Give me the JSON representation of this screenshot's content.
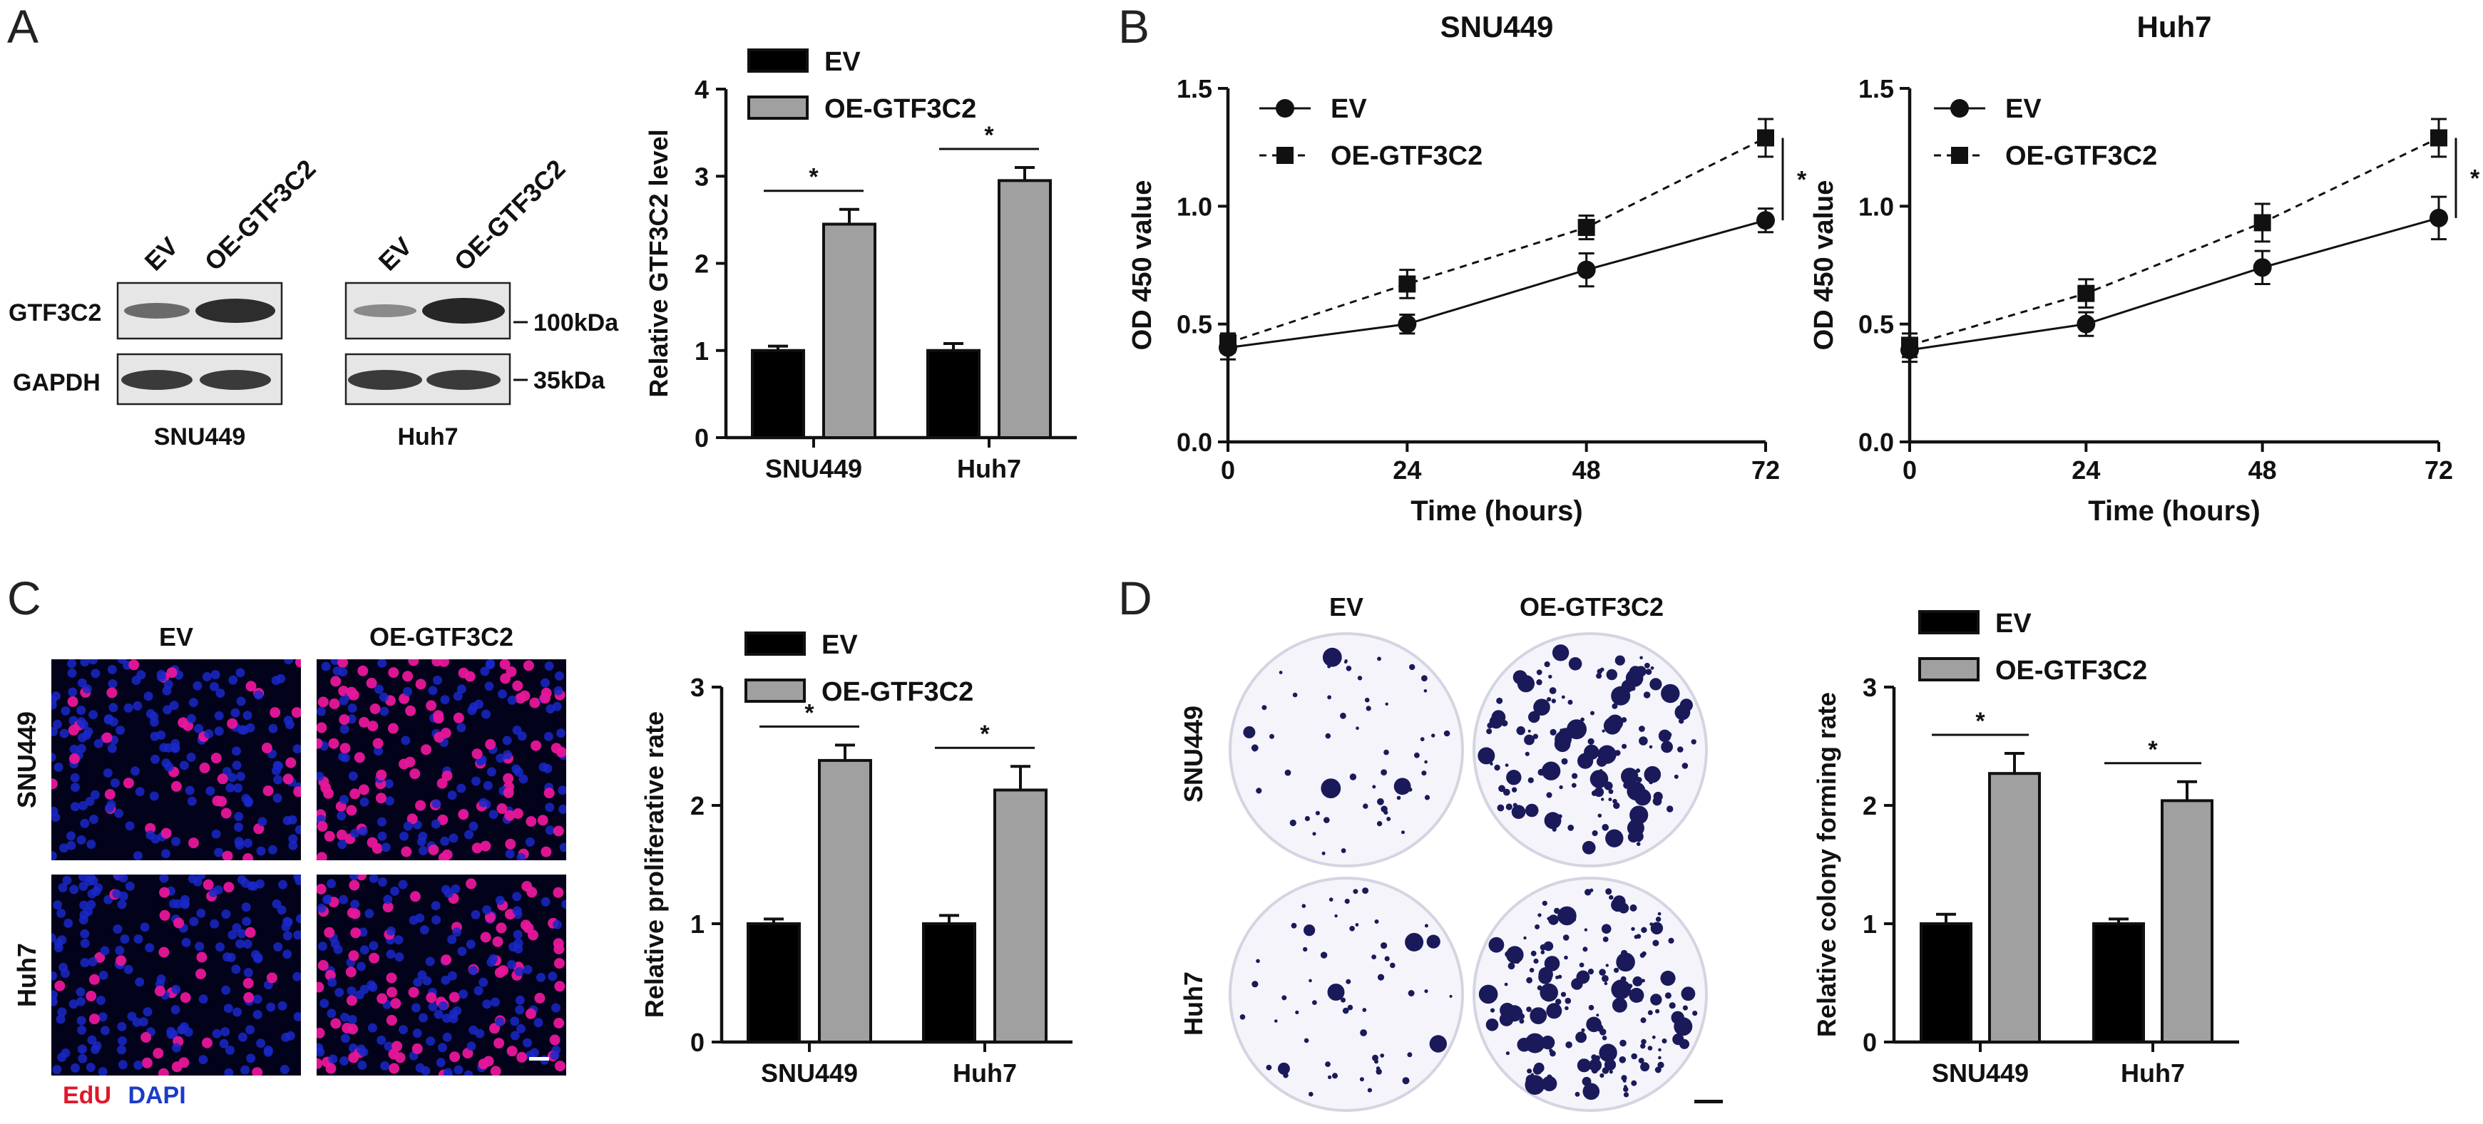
{
  "panels": {
    "a": "A",
    "b": "B",
    "c": "C",
    "d": "D"
  },
  "western": {
    "lanes": [
      "EV",
      "OE-GTF3C2"
    ],
    "rows": [
      "GTF3C2",
      "GAPDH"
    ],
    "cells": [
      "SNU449",
      "Huh7"
    ],
    "markers": [
      "100kDa",
      "35kDa"
    ]
  },
  "if_panel": {
    "cols": [
      "EV",
      "OE-GTF3C2"
    ],
    "rows": [
      "SNU449",
      "Huh7"
    ],
    "stain_edu": "EdU",
    "stain_dapi": "DAPI"
  },
  "colony_panel": {
    "cols": [
      "EV",
      "OE-GTF3C2"
    ],
    "rows": [
      "SNU449",
      "Huh7"
    ]
  },
  "colors": {
    "ev": "#000000",
    "oe": "#a0a0a0",
    "dapi": "#1a28c8",
    "edu": "#e8169a",
    "colony": "#1a1a5a"
  },
  "chart_data": [
    {
      "id": "A-bar",
      "type": "bar",
      "categories": [
        "SNU449",
        "Huh7"
      ],
      "series": [
        {
          "name": "EV",
          "values": [
            1.0,
            1.0
          ],
          "errors": [
            0.05,
            0.08
          ]
        },
        {
          "name": "OE-GTF3C2",
          "values": [
            2.45,
            2.95
          ],
          "errors": [
            0.17,
            0.15
          ]
        }
      ],
      "ylabel": "Relative GTF3C2 level",
      "ylim": [
        0,
        4
      ],
      "yticks": [
        "0",
        "1",
        "2",
        "3",
        "4"
      ],
      "significance": [
        "*",
        "*"
      ],
      "legend": "top"
    },
    {
      "id": "B-SNU449",
      "type": "line",
      "title": "SNU449",
      "x": [
        0,
        24,
        48,
        72
      ],
      "series": [
        {
          "name": "EV",
          "values": [
            0.4,
            0.5,
            0.73,
            0.94
          ],
          "errors": [
            0.05,
            0.04,
            0.07,
            0.05
          ]
        },
        {
          "name": "OE-GTF3C2",
          "values": [
            0.42,
            0.67,
            0.91,
            1.29
          ],
          "errors": [
            0.04,
            0.06,
            0.05,
            0.08
          ]
        }
      ],
      "xlabel": "Time (hours)",
      "ylabel": "OD 450 value",
      "ylim": [
        0,
        1.5
      ],
      "yticks": [
        "0.0",
        "0.5",
        "1.0",
        "1.5"
      ],
      "xticks": [
        "0",
        "24",
        "48",
        "72"
      ],
      "significance": "*",
      "legend": "top-left"
    },
    {
      "id": "B-Huh7",
      "type": "line",
      "title": "Huh7",
      "x": [
        0,
        24,
        48,
        72
      ],
      "series": [
        {
          "name": "EV",
          "values": [
            0.39,
            0.5,
            0.74,
            0.95
          ],
          "errors": [
            0.05,
            0.05,
            0.07,
            0.09
          ]
        },
        {
          "name": "OE-GTF3C2",
          "values": [
            0.41,
            0.63,
            0.93,
            1.29
          ],
          "errors": [
            0.05,
            0.06,
            0.08,
            0.08
          ]
        }
      ],
      "xlabel": "Time (hours)",
      "ylabel": "OD 450 value",
      "ylim": [
        0,
        1.5
      ],
      "yticks": [
        "0.0",
        "0.5",
        "1.0",
        "1.5"
      ],
      "xticks": [
        "0",
        "24",
        "48",
        "72"
      ],
      "significance": "*",
      "legend": "top-left"
    },
    {
      "id": "C-bar",
      "type": "bar",
      "categories": [
        "SNU449",
        "Huh7"
      ],
      "series": [
        {
          "name": "EV",
          "values": [
            1.0,
            1.0
          ],
          "errors": [
            0.04,
            0.07
          ]
        },
        {
          "name": "OE-GTF3C2",
          "values": [
            2.38,
            2.13
          ],
          "errors": [
            0.13,
            0.2
          ]
        }
      ],
      "ylabel": "Relative proliferative rate",
      "ylim": [
        0,
        3
      ],
      "yticks": [
        "0",
        "1",
        "2",
        "3"
      ],
      "significance": [
        "*",
        "*"
      ],
      "legend": "top"
    },
    {
      "id": "D-bar",
      "type": "bar",
      "categories": [
        "SNU449",
        "Huh7"
      ],
      "series": [
        {
          "name": "EV",
          "values": [
            1.0,
            1.0
          ],
          "errors": [
            0.08,
            0.04
          ]
        },
        {
          "name": "OE-GTF3C2",
          "values": [
            2.27,
            2.04
          ],
          "errors": [
            0.17,
            0.16
          ]
        }
      ],
      "ylabel": "Relative colony forming rate",
      "ylim": [
        0,
        3
      ],
      "yticks": [
        "0",
        "1",
        "2",
        "3"
      ],
      "significance": [
        "*",
        "*"
      ],
      "legend": "top"
    }
  ]
}
